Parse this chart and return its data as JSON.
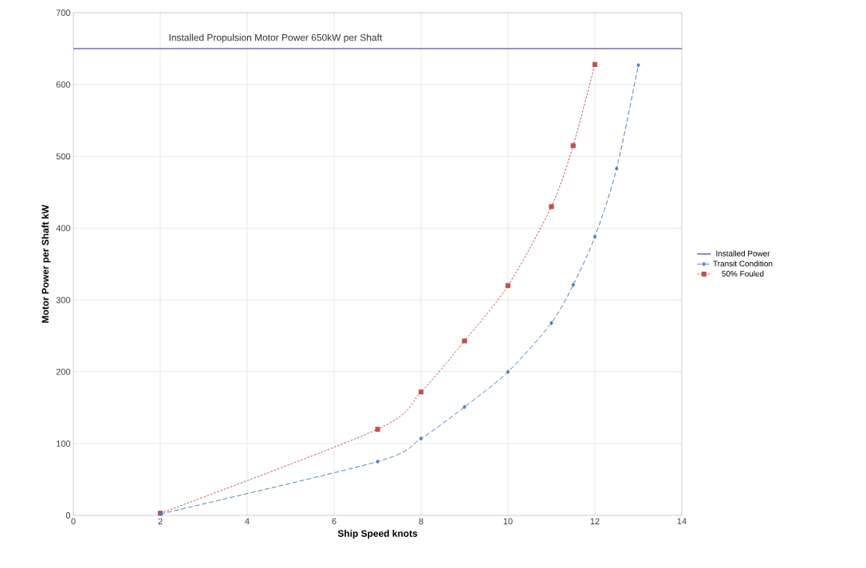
{
  "chart_data": {
    "type": "line",
    "xlabel": "Ship Speed knots",
    "ylabel": "Motor Power per Shaft kW",
    "annotations": [
      "Installed Propulsion Motor Power 650kW per Shaft"
    ],
    "xlim": [
      0,
      14
    ],
    "xticks": [
      0,
      2,
      4,
      6,
      8,
      10,
      12,
      14
    ],
    "ylim": [
      0,
      700
    ],
    "yticks": [
      0,
      100,
      200,
      300,
      400,
      500,
      600,
      700
    ],
    "grid": true,
    "legend": "right",
    "series": [
      {
        "name": "Installed Power",
        "color": "#7b6aa5",
        "x": [
          0,
          14
        ],
        "values": [
          650,
          650
        ],
        "marker": "none",
        "line_style": "solid"
      },
      {
        "name": "Transit Condition",
        "color": "#4f81bd",
        "x": [
          2,
          7,
          8,
          9,
          10,
          11,
          11.5,
          12,
          12.5,
          13
        ],
        "values": [
          2,
          75,
          107,
          151,
          200,
          268,
          321,
          388,
          483,
          627
        ],
        "marker": "diamond",
        "line_style": "dashed"
      },
      {
        "name": "50% Fouled",
        "color": "#c0504d",
        "x": [
          2,
          7,
          8,
          9,
          10,
          11,
          11.5,
          12
        ],
        "values": [
          3,
          120,
          172,
          243,
          320,
          430,
          515,
          628
        ],
        "marker": "square",
        "line_style": "dotted"
      }
    ]
  }
}
